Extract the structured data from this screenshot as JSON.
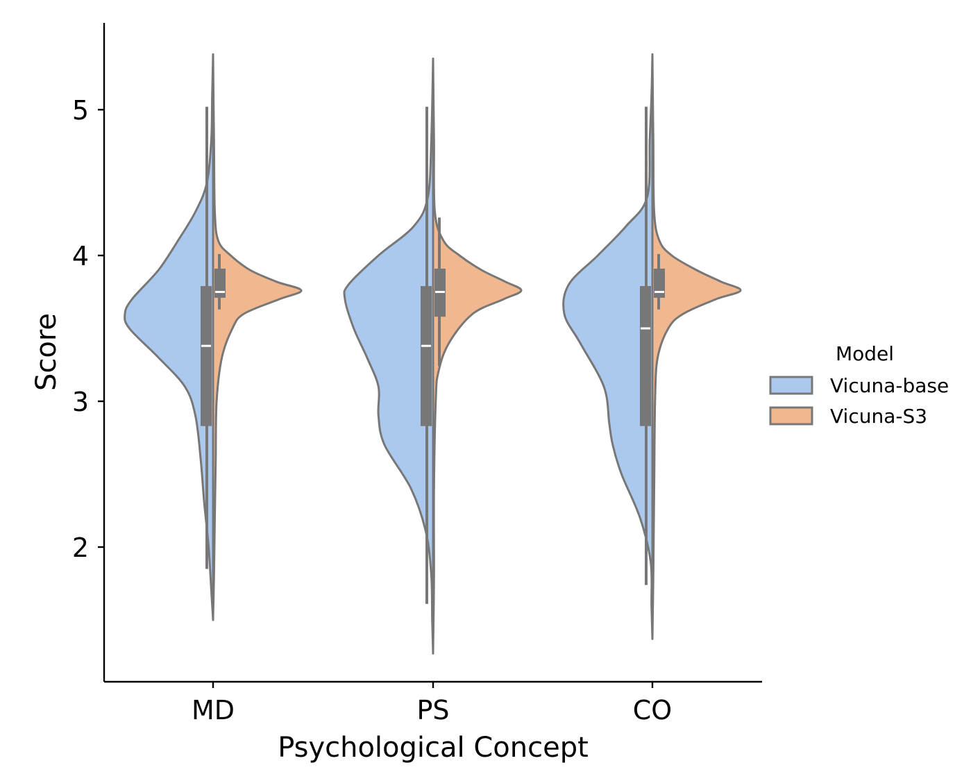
{
  "chart_data": {
    "type": "violin",
    "split": true,
    "title": "",
    "xlabel": "Psychological Concept",
    "ylabel": "Score",
    "categories": [
      "MD",
      "PS",
      "CO"
    ],
    "ylim": [
      1.1,
      5.6
    ],
    "yticks": [
      2,
      3,
      4,
      5
    ],
    "grid": false,
    "legend": {
      "title": "Model",
      "position": "right",
      "entries": [
        {
          "label": "Vicuna-base",
          "color": "#abc9ee"
        },
        {
          "label": "Vicuna-S3",
          "color": "#f1b890"
        }
      ]
    },
    "series": [
      {
        "name": "Vicuna-base",
        "color": "#abc9ee",
        "side": "left",
        "groups": [
          {
            "category": "MD",
            "q1": 2.83,
            "median": 3.38,
            "q3": 3.79,
            "whisker_low": 1.85,
            "whisker_high": 5.02,
            "density": [
              [
                1.5,
                0.0
              ],
              [
                1.7,
                0.02
              ],
              [
                2.0,
                0.05
              ],
              [
                2.3,
                0.1
              ],
              [
                2.6,
                0.14
              ],
              [
                2.9,
                0.2
              ],
              [
                3.1,
                0.32
              ],
              [
                3.3,
                0.62
              ],
              [
                3.5,
                0.95
              ],
              [
                3.6,
                1.0
              ],
              [
                3.7,
                0.92
              ],
              [
                3.9,
                0.62
              ],
              [
                4.1,
                0.4
              ],
              [
                4.3,
                0.2
              ],
              [
                4.5,
                0.07
              ],
              [
                4.8,
                0.02
              ],
              [
                5.1,
                0.01
              ],
              [
                5.38,
                0.0
              ]
            ]
          },
          {
            "category": "PS",
            "q1": 2.83,
            "median": 3.38,
            "q3": 3.79,
            "whisker_low": 1.61,
            "whisker_high": 5.02,
            "density": [
              [
                1.27,
                0.0
              ],
              [
                1.5,
                0.01
              ],
              [
                1.8,
                0.02
              ],
              [
                2.1,
                0.08
              ],
              [
                2.4,
                0.25
              ],
              [
                2.7,
                0.55
              ],
              [
                2.9,
                0.62
              ],
              [
                3.1,
                0.62
              ],
              [
                3.3,
                0.75
              ],
              [
                3.5,
                0.9
              ],
              [
                3.7,
                1.0
              ],
              [
                3.8,
                0.96
              ],
              [
                4.0,
                0.62
              ],
              [
                4.2,
                0.22
              ],
              [
                4.4,
                0.06
              ],
              [
                4.8,
                0.02
              ],
              [
                5.35,
                0.0
              ]
            ]
          },
          {
            "category": "CO",
            "q1": 2.83,
            "median": 3.5,
            "q3": 3.79,
            "whisker_low": 1.74,
            "whisker_high": 5.02,
            "density": [
              [
                1.37,
                0.0
              ],
              [
                1.6,
                0.01
              ],
              [
                1.9,
                0.02
              ],
              [
                2.2,
                0.14
              ],
              [
                2.5,
                0.35
              ],
              [
                2.7,
                0.45
              ],
              [
                2.85,
                0.49
              ],
              [
                3.1,
                0.55
              ],
              [
                3.4,
                0.82
              ],
              [
                3.6,
                1.0
              ],
              [
                3.8,
                0.95
              ],
              [
                4.0,
                0.62
              ],
              [
                4.2,
                0.3
              ],
              [
                4.4,
                0.06
              ],
              [
                4.8,
                0.03
              ],
              [
                5.1,
                0.01
              ],
              [
                5.38,
                0.0
              ]
            ]
          }
        ]
      },
      {
        "name": "Vicuna-S3",
        "color": "#f1b890",
        "side": "right",
        "groups": [
          {
            "category": "MD",
            "q1": 3.71,
            "median": 3.75,
            "q3": 3.91,
            "whisker_low": 3.63,
            "whisker_high": 4.01,
            "density": [
              [
                1.5,
                0.0
              ],
              [
                1.8,
                0.01
              ],
              [
                2.2,
                0.02
              ],
              [
                2.6,
                0.03
              ],
              [
                3.0,
                0.04
              ],
              [
                3.3,
                0.1
              ],
              [
                3.5,
                0.22
              ],
              [
                3.6,
                0.35
              ],
              [
                3.7,
                0.75
              ],
              [
                3.76,
                1.0
              ],
              [
                3.82,
                0.72
              ],
              [
                3.9,
                0.42
              ],
              [
                4.0,
                0.2
              ],
              [
                4.1,
                0.06
              ],
              [
                4.3,
                0.02
              ],
              [
                4.8,
                0.01
              ],
              [
                5.38,
                0.0
              ]
            ]
          },
          {
            "category": "PS",
            "q1": 3.58,
            "median": 3.75,
            "q3": 3.91,
            "whisker_low": 3.24,
            "whisker_high": 4.26,
            "density": [
              [
                1.27,
                0.0
              ],
              [
                1.8,
                0.01
              ],
              [
                2.4,
                0.01
              ],
              [
                3.0,
                0.03
              ],
              [
                3.2,
                0.06
              ],
              [
                3.4,
                0.18
              ],
              [
                3.6,
                0.45
              ],
              [
                3.7,
                0.8
              ],
              [
                3.76,
                1.0
              ],
              [
                3.82,
                0.82
              ],
              [
                3.9,
                0.55
              ],
              [
                4.0,
                0.3
              ],
              [
                4.1,
                0.12
              ],
              [
                4.3,
                0.02
              ],
              [
                4.8,
                0.01
              ],
              [
                5.35,
                0.0
              ]
            ]
          },
          {
            "category": "CO",
            "q1": 3.71,
            "median": 3.75,
            "q3": 3.91,
            "whisker_low": 3.63,
            "whisker_high": 4.01,
            "density": [
              [
                1.37,
                0.0
              ],
              [
                1.8,
                0.01
              ],
              [
                2.4,
                0.02
              ],
              [
                3.0,
                0.03
              ],
              [
                3.3,
                0.06
              ],
              [
                3.5,
                0.18
              ],
              [
                3.6,
                0.35
              ],
              [
                3.7,
                0.72
              ],
              [
                3.76,
                1.0
              ],
              [
                3.82,
                0.78
              ],
              [
                3.9,
                0.5
              ],
              [
                4.0,
                0.22
              ],
              [
                4.1,
                0.08
              ],
              [
                4.3,
                0.02
              ],
              [
                4.8,
                0.01
              ],
              [
                5.38,
                0.0
              ]
            ]
          }
        ]
      }
    ]
  }
}
